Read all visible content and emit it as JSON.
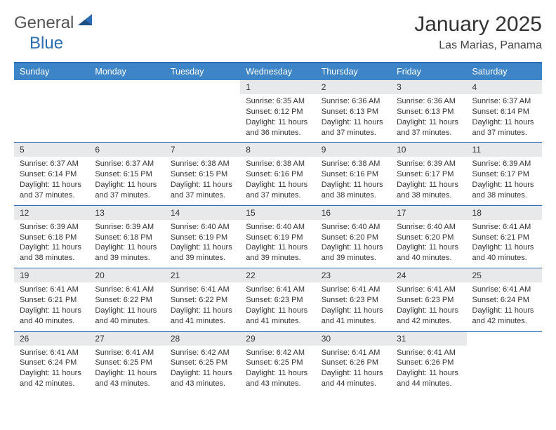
{
  "brand": {
    "primary": "General",
    "secondary": "Blue"
  },
  "colors": {
    "header_band": "#3d85c6",
    "header_rule": "#2a6db3",
    "daynum_bg": "#e8e9eb",
    "text": "#333333",
    "logo_blue": "#2a6db3"
  },
  "title": "January 2025",
  "location": "Las Marias, Panama",
  "days_of_week": [
    "Sunday",
    "Monday",
    "Tuesday",
    "Wednesday",
    "Thursday",
    "Friday",
    "Saturday"
  ],
  "weeks": [
    [
      null,
      null,
      null,
      {
        "d": "1",
        "sr": "6:35 AM",
        "ss": "6:12 PM",
        "dl": "11 hours and 36 minutes."
      },
      {
        "d": "2",
        "sr": "6:36 AM",
        "ss": "6:13 PM",
        "dl": "11 hours and 37 minutes."
      },
      {
        "d": "3",
        "sr": "6:36 AM",
        "ss": "6:13 PM",
        "dl": "11 hours and 37 minutes."
      },
      {
        "d": "4",
        "sr": "6:37 AM",
        "ss": "6:14 PM",
        "dl": "11 hours and 37 minutes."
      }
    ],
    [
      {
        "d": "5",
        "sr": "6:37 AM",
        "ss": "6:14 PM",
        "dl": "11 hours and 37 minutes."
      },
      {
        "d": "6",
        "sr": "6:37 AM",
        "ss": "6:15 PM",
        "dl": "11 hours and 37 minutes."
      },
      {
        "d": "7",
        "sr": "6:38 AM",
        "ss": "6:15 PM",
        "dl": "11 hours and 37 minutes."
      },
      {
        "d": "8",
        "sr": "6:38 AM",
        "ss": "6:16 PM",
        "dl": "11 hours and 37 minutes."
      },
      {
        "d": "9",
        "sr": "6:38 AM",
        "ss": "6:16 PM",
        "dl": "11 hours and 38 minutes."
      },
      {
        "d": "10",
        "sr": "6:39 AM",
        "ss": "6:17 PM",
        "dl": "11 hours and 38 minutes."
      },
      {
        "d": "11",
        "sr": "6:39 AM",
        "ss": "6:17 PM",
        "dl": "11 hours and 38 minutes."
      }
    ],
    [
      {
        "d": "12",
        "sr": "6:39 AM",
        "ss": "6:18 PM",
        "dl": "11 hours and 38 minutes."
      },
      {
        "d": "13",
        "sr": "6:39 AM",
        "ss": "6:18 PM",
        "dl": "11 hours and 39 minutes."
      },
      {
        "d": "14",
        "sr": "6:40 AM",
        "ss": "6:19 PM",
        "dl": "11 hours and 39 minutes."
      },
      {
        "d": "15",
        "sr": "6:40 AM",
        "ss": "6:19 PM",
        "dl": "11 hours and 39 minutes."
      },
      {
        "d": "16",
        "sr": "6:40 AM",
        "ss": "6:20 PM",
        "dl": "11 hours and 39 minutes."
      },
      {
        "d": "17",
        "sr": "6:40 AM",
        "ss": "6:20 PM",
        "dl": "11 hours and 40 minutes."
      },
      {
        "d": "18",
        "sr": "6:41 AM",
        "ss": "6:21 PM",
        "dl": "11 hours and 40 minutes."
      }
    ],
    [
      {
        "d": "19",
        "sr": "6:41 AM",
        "ss": "6:21 PM",
        "dl": "11 hours and 40 minutes."
      },
      {
        "d": "20",
        "sr": "6:41 AM",
        "ss": "6:22 PM",
        "dl": "11 hours and 40 minutes."
      },
      {
        "d": "21",
        "sr": "6:41 AM",
        "ss": "6:22 PM",
        "dl": "11 hours and 41 minutes."
      },
      {
        "d": "22",
        "sr": "6:41 AM",
        "ss": "6:23 PM",
        "dl": "11 hours and 41 minutes."
      },
      {
        "d": "23",
        "sr": "6:41 AM",
        "ss": "6:23 PM",
        "dl": "11 hours and 41 minutes."
      },
      {
        "d": "24",
        "sr": "6:41 AM",
        "ss": "6:23 PM",
        "dl": "11 hours and 42 minutes."
      },
      {
        "d": "25",
        "sr": "6:41 AM",
        "ss": "6:24 PM",
        "dl": "11 hours and 42 minutes."
      }
    ],
    [
      {
        "d": "26",
        "sr": "6:41 AM",
        "ss": "6:24 PM",
        "dl": "11 hours and 42 minutes."
      },
      {
        "d": "27",
        "sr": "6:41 AM",
        "ss": "6:25 PM",
        "dl": "11 hours and 43 minutes."
      },
      {
        "d": "28",
        "sr": "6:42 AM",
        "ss": "6:25 PM",
        "dl": "11 hours and 43 minutes."
      },
      {
        "d": "29",
        "sr": "6:42 AM",
        "ss": "6:25 PM",
        "dl": "11 hours and 43 minutes."
      },
      {
        "d": "30",
        "sr": "6:41 AM",
        "ss": "6:26 PM",
        "dl": "11 hours and 44 minutes."
      },
      {
        "d": "31",
        "sr": "6:41 AM",
        "ss": "6:26 PM",
        "dl": "11 hours and 44 minutes."
      },
      null
    ]
  ],
  "labels": {
    "sunrise": "Sunrise:",
    "sunset": "Sunset:",
    "daylight": "Daylight:"
  }
}
